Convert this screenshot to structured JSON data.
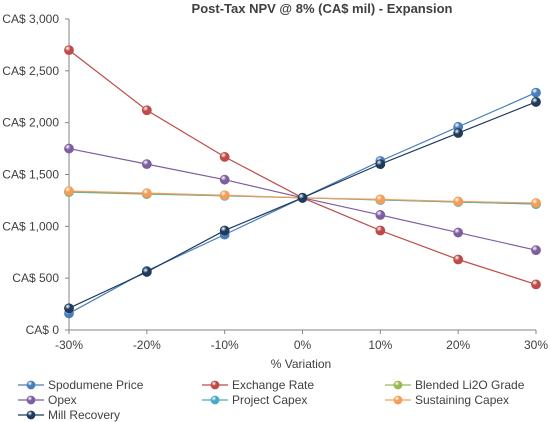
{
  "chart_data": {
    "type": "line",
    "title": "Post-Tax NPV @ 8%  (CA$ mil) - Expansion",
    "xlabel": "% Variation",
    "ylabel": "",
    "categories": [
      "-30%",
      "-20%",
      "-10%",
      "0%",
      "10%",
      "20%",
      "30%"
    ],
    "x": [
      -30,
      -20,
      -10,
      0,
      10,
      20,
      30
    ],
    "ylim": [
      0,
      3000
    ],
    "yticks": [
      0,
      500,
      1000,
      1500,
      2000,
      2500,
      3000
    ],
    "ytick_labels": [
      "CA$ 0",
      "CA$ 500",
      "CA$ 1,000",
      "CA$ 1,500",
      "CA$ 2,000",
      "CA$ 2,500",
      "CA$ 3,000"
    ],
    "grid": false,
    "legend_position": "bottom",
    "series": [
      {
        "name": "Spodumene Price",
        "color": "#4a7ebb",
        "values": [
          160,
          570,
          920,
          1275,
          1630,
          1960,
          2290
        ]
      },
      {
        "name": "Exchange Rate",
        "color": "#be4b48",
        "values": [
          2700,
          2120,
          1670,
          1275,
          960,
          680,
          440
        ]
      },
      {
        "name": "Blended Li2O Grade",
        "color": "#98b954",
        "values": [
          1330,
          1310,
          1295,
          1275,
          1255,
          1235,
          1215
        ]
      },
      {
        "name": "Opex",
        "color": "#7d5fa0",
        "values": [
          1750,
          1600,
          1450,
          1275,
          1110,
          940,
          770
        ]
      },
      {
        "name": "Project Capex",
        "color": "#46aac5",
        "values": [
          1335,
          1315,
          1295,
          1275,
          1255,
          1235,
          1215
        ]
      },
      {
        "name": "Sustaining Capex",
        "color": "#f59d56",
        "values": [
          1340,
          1320,
          1300,
          1275,
          1260,
          1240,
          1225
        ]
      },
      {
        "name": "Mill Recovery",
        "color": "#1f3a5c",
        "values": [
          210,
          560,
          960,
          1275,
          1600,
          1900,
          2200
        ]
      }
    ]
  }
}
